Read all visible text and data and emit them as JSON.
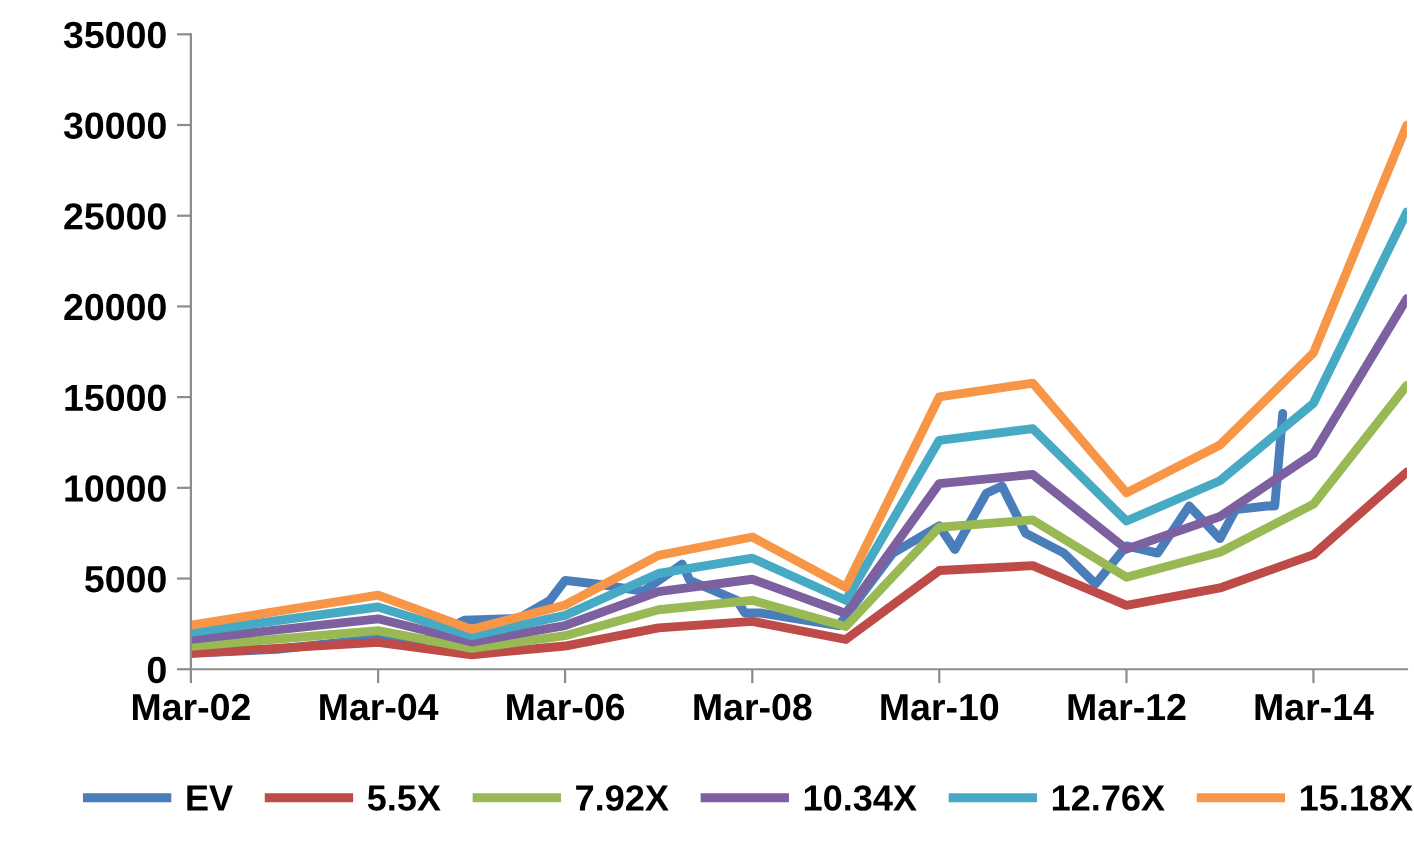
{
  "chart_data": {
    "type": "line",
    "x": [
      "2002-03",
      "2004-03",
      "2005-03",
      "2006-03",
      "2007-03",
      "2008-03",
      "2009-03",
      "2010-03",
      "2011-03",
      "2012-03",
      "2013-03",
      "2014-03",
      "2015-03"
    ],
    "series": [
      {
        "name": "EV",
        "color": "#4a7ebb",
        "x": [
          "2002-03",
          "2003-02",
          "2004-03",
          "2004-09",
          "2005-02",
          "2005-09",
          "2006-01",
          "2006-03",
          "2006-07",
          "2007-01",
          "2007-06",
          "2007-07",
          "2008-01",
          "2008-02",
          "2008-04",
          "2009-02",
          "2009-09",
          "2010-03",
          "2010-05",
          "2010-09",
          "2010-11",
          "2011-02",
          "2011-07",
          "2011-11",
          "2012-03",
          "2012-07",
          "2012-11",
          "2013-03",
          "2013-05",
          "2013-09",
          "2013-10",
          "2013-11"
        ],
        "values": [
          880,
          1100,
          1700,
          1600,
          2700,
          2800,
          3800,
          4900,
          4700,
          4300,
          5800,
          4900,
          3800,
          3100,
          3100,
          2400,
          6400,
          7900,
          6600,
          9700,
          10100,
          7500,
          6400,
          4700,
          6800,
          6400,
          9000,
          7200,
          8800,
          9000,
          9000,
          14100
        ]
      },
      {
        "name": "5.5X",
        "color": "#be4b48",
        "values": [
          880,
          1480,
          800,
          1280,
          2280,
          2640,
          1640,
          5440,
          5710,
          3520,
          4480,
          6320,
          10870
        ]
      },
      {
        "name": "7.92X",
        "color": "#98b954",
        "values": [
          1270,
          2130,
          1150,
          1850,
          3280,
          3800,
          2360,
          7830,
          8230,
          5070,
          6450,
          9100,
          15650
        ]
      },
      {
        "name": "10.34X",
        "color": "#7d60a0",
        "values": [
          1650,
          2780,
          1500,
          2410,
          4280,
          4960,
          3080,
          10230,
          10740,
          6620,
          8420,
          11880,
          20430
        ]
      },
      {
        "name": "12.76X",
        "color": "#46aac5",
        "values": [
          2040,
          3430,
          1850,
          2970,
          5280,
          6120,
          3800,
          12620,
          13260,
          8170,
          10390,
          14660,
          25210
        ]
      },
      {
        "name": "15.18X",
        "color": "#f79646",
        "values": [
          2430,
          4080,
          2200,
          3540,
          6280,
          7290,
          4520,
          15010,
          15770,
          9720,
          12360,
          17440,
          30000
        ]
      }
    ],
    "xlim": [
      "2002-03",
      "2015-03"
    ],
    "xticks": [
      {
        "value": "2002-03",
        "label": "Mar-02"
      },
      {
        "value": "2004-03",
        "label": "Mar-04"
      },
      {
        "value": "2006-03",
        "label": "Mar-06"
      },
      {
        "value": "2008-03",
        "label": "Mar-08"
      },
      {
        "value": "2010-03",
        "label": "Mar-10"
      },
      {
        "value": "2012-03",
        "label": "Mar-12"
      },
      {
        "value": "2014-03",
        "label": "Mar-14"
      }
    ],
    "ylim": [
      0,
      35000
    ],
    "yticks": [
      0,
      5000,
      10000,
      15000,
      20000,
      25000,
      30000,
      35000
    ],
    "grid": false,
    "legend": "bottom",
    "marker": "none",
    "line_style": "solid"
  }
}
